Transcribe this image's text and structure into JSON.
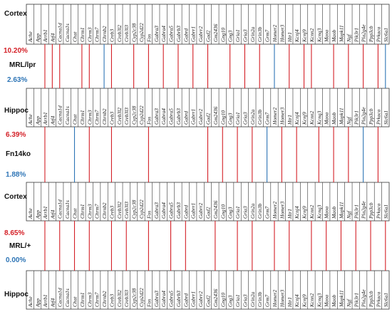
{
  "genes": [
    "Ache",
    "App",
    "Arrb1",
    "Atf4",
    "Cacna1d",
    "Cacna1s",
    "Chat",
    "Chrm1",
    "Chrm3",
    "Chrm7",
    "Chrnb2",
    "Creb3",
    "Creb3l2",
    "Creb3l3",
    "Cyp2c38",
    "Cyp2d22",
    "Fos",
    "Gabra3",
    "Gabra4",
    "Gabra5",
    "Gabrb3",
    "Gabrd",
    "Gabrr1",
    "Gabrr2",
    "Gad2",
    "Gm2436",
    "Gng10",
    "Gng3",
    "Gria1",
    "Gria3",
    "Grin2a",
    "Grin3b",
    "Grm7",
    "Homer2",
    "Homer3",
    "Htr1",
    "Kcnj4",
    "Kcnj9",
    "Kcnn2",
    "Kcnq3",
    "Maoa",
    "Maob",
    "Mapk11",
    "Ngf",
    "Pik3r1",
    "Pla2g4e",
    "Ppp3cb",
    "Prkaca",
    "Slc6a1"
  ],
  "colors": {
    "up": "#d42027",
    "down": "#2e75b6",
    "border": "#333333"
  },
  "panels": [
    {
      "model": "MRL/lpr",
      "top_region": "Cortex",
      "bottom_region": "Hippoc",
      "up_percent": "10.20%",
      "down_percent": "2.63%",
      "links": [
        {
          "gene": "Arrb1",
          "dir": "up"
        },
        {
          "gene": "Atf4",
          "dir": "up"
        },
        {
          "gene": "Cacna1d",
          "dir": "up"
        },
        {
          "gene": "Chrm1",
          "dir": "up"
        },
        {
          "gene": "Chrm3",
          "dir": "up"
        },
        {
          "gene": "Chrnb2",
          "dir": "down"
        },
        {
          "gene": "Creb3",
          "dir": "up"
        },
        {
          "gene": "Cyp2c38",
          "dir": "up"
        },
        {
          "gene": "Fos",
          "dir": "up"
        },
        {
          "gene": "Gabra4",
          "dir": "up"
        },
        {
          "gene": "Gabrb3",
          "dir": "up"
        },
        {
          "gene": "Gabrr1",
          "dir": "up"
        },
        {
          "gene": "Gad2",
          "dir": "up"
        },
        {
          "gene": "Gng3",
          "dir": "up"
        },
        {
          "gene": "Gria3",
          "dir": "up"
        },
        {
          "gene": "Grin3b",
          "dir": "up"
        },
        {
          "gene": "Homer2",
          "dir": "down"
        },
        {
          "gene": "Htr1",
          "dir": "up"
        },
        {
          "gene": "Kcnj9",
          "dir": "up"
        },
        {
          "gene": "Kcnn2",
          "dir": "up"
        },
        {
          "gene": "Maob",
          "dir": "up"
        },
        {
          "gene": "Ngf",
          "dir": "up"
        },
        {
          "gene": "Pla2g4e",
          "dir": "up"
        },
        {
          "gene": "Prkaca",
          "dir": "up"
        },
        {
          "gene": "Slc6a1",
          "dir": "down"
        }
      ]
    },
    {
      "model": "Fn14ko",
      "top_region": "Hippoc",
      "bottom_region": "Cortex",
      "up_percent": "6.39%",
      "down_percent": "1.88%",
      "links": [
        {
          "gene": "Arrb1",
          "dir": "up"
        },
        {
          "gene": "Chat",
          "dir": "down"
        },
        {
          "gene": "Chrm3",
          "dir": "up"
        },
        {
          "gene": "Creb3",
          "dir": "up"
        },
        {
          "gene": "Fos",
          "dir": "up"
        },
        {
          "gene": "Gad2",
          "dir": "up"
        },
        {
          "gene": "Gng10",
          "dir": "up"
        },
        {
          "gene": "Gria1",
          "dir": "up"
        },
        {
          "gene": "Grin2a",
          "dir": "up"
        },
        {
          "gene": "Grm7",
          "dir": "down"
        },
        {
          "gene": "Homer3",
          "dir": "up"
        },
        {
          "gene": "Kcnj4",
          "dir": "up"
        },
        {
          "gene": "Kcnq3",
          "dir": "up"
        },
        {
          "gene": "Maob",
          "dir": "up"
        },
        {
          "gene": "Ngf",
          "dir": "up"
        },
        {
          "gene": "Pla2g4e",
          "dir": "down"
        },
        {
          "gene": "Prkaca",
          "dir": "up"
        }
      ]
    },
    {
      "model": "MRL/+",
      "top_region": "Cortex",
      "bottom_region": "Hippoc",
      "up_percent": "8.65%",
      "down_percent": "0.00%",
      "links": [
        {
          "gene": "Arrb1",
          "dir": "up"
        },
        {
          "gene": "Cacna1d",
          "dir": "up"
        },
        {
          "gene": "Chat",
          "dir": "up"
        },
        {
          "gene": "Chrm3",
          "dir": "up"
        },
        {
          "gene": "Creb3",
          "dir": "up"
        },
        {
          "gene": "Creb3l3",
          "dir": "up"
        },
        {
          "gene": "Fos",
          "dir": "up"
        },
        {
          "gene": "Gabra5",
          "dir": "up"
        },
        {
          "gene": "Gabrd",
          "dir": "up"
        },
        {
          "gene": "Gm2436",
          "dir": "up"
        },
        {
          "gene": "Gria1",
          "dir": "up"
        },
        {
          "gene": "Grin2a",
          "dir": "up"
        },
        {
          "gene": "Homer2",
          "dir": "up"
        },
        {
          "gene": "Htr1",
          "dir": "up"
        },
        {
          "gene": "Kcnn2",
          "dir": "up"
        },
        {
          "gene": "Maoa",
          "dir": "up"
        },
        {
          "gene": "Mapk11",
          "dir": "up"
        },
        {
          "gene": "Pik3r1",
          "dir": "up"
        },
        {
          "gene": "Ppp3cb",
          "dir": "up"
        },
        {
          "gene": "Slc6a1",
          "dir": "up"
        }
      ]
    }
  ]
}
